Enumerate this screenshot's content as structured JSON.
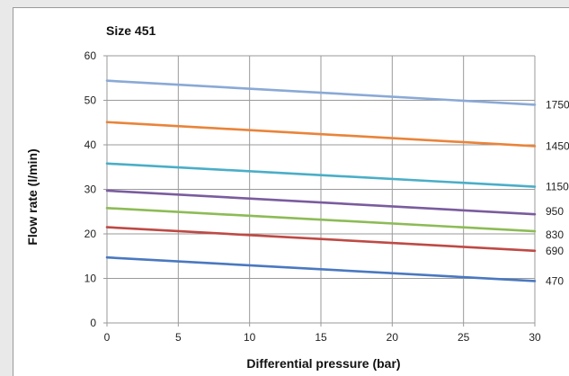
{
  "chart_data": {
    "type": "line",
    "title": "Size 451",
    "xlabel": "Differential pressure (bar)",
    "ylabel": "Flow rate (l/min)",
    "xlim": [
      0,
      30
    ],
    "ylim": [
      0,
      60
    ],
    "x_ticks": [
      "0",
      "5",
      "10",
      "15",
      "20",
      "25",
      "30"
    ],
    "y_ticks": [
      "0",
      "10",
      "20",
      "30",
      "40",
      "50",
      "60"
    ],
    "grid": true,
    "legend": "right-end labels",
    "x": [
      0,
      30
    ],
    "series": [
      {
        "name": "1750",
        "color": "#8aa9d6",
        "values": [
          54.4,
          49.0
        ]
      },
      {
        "name": "1450",
        "color": "#e9843a",
        "values": [
          45.1,
          39.7
        ]
      },
      {
        "name": "1150",
        "color": "#4aaec7",
        "values": [
          35.8,
          30.6
        ]
      },
      {
        "name": "950",
        "color": "#7a5c9e",
        "values": [
          29.7,
          24.4
        ]
      },
      {
        "name": "830",
        "color": "#8dbb56",
        "values": [
          25.8,
          20.6
        ]
      },
      {
        "name": "690",
        "color": "#be4a45",
        "values": [
          21.5,
          16.2
        ]
      },
      {
        "name": "470",
        "color": "#4a78c0",
        "values": [
          14.7,
          9.4
        ]
      }
    ]
  }
}
